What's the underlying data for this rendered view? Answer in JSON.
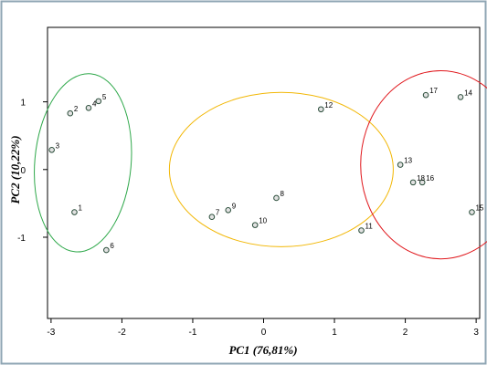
{
  "chart_data": {
    "type": "scatter",
    "xlabel": "PC1 (76,81%)",
    "ylabel": "PC2 (10,22%)",
    "xlim": [
      -3.05,
      3.05
    ],
    "ylim": [
      -2.2,
      2.1
    ],
    "xticks": [
      -3,
      -2,
      -1,
      0,
      1,
      2,
      3
    ],
    "yticks": [
      1,
      0,
      -1
    ],
    "grid": false,
    "points": [
      {
        "label": "1",
        "x": -2.67,
        "y": -0.63
      },
      {
        "label": "2",
        "x": -2.73,
        "y": 0.83
      },
      {
        "label": "3",
        "x": -2.99,
        "y": 0.29
      },
      {
        "label": "4",
        "x": -2.47,
        "y": 0.91
      },
      {
        "label": "5",
        "x": -2.33,
        "y": 1.01
      },
      {
        "label": "6",
        "x": -2.22,
        "y": -1.19
      },
      {
        "label": "7",
        "x": -0.73,
        "y": -0.7
      },
      {
        "label": "8",
        "x": 0.18,
        "y": -0.42
      },
      {
        "label": "9",
        "x": -0.5,
        "y": -0.6
      },
      {
        "label": "10",
        "x": -0.12,
        "y": -0.82
      },
      {
        "label": "11",
        "x": 1.38,
        "y": -0.9
      },
      {
        "label": "12",
        "x": 0.81,
        "y": 0.89
      },
      {
        "label": "13",
        "x": 1.93,
        "y": 0.07
      },
      {
        "label": "14",
        "x": 2.78,
        "y": 1.07
      },
      {
        "label": "15",
        "x": 2.94,
        "y": -0.63
      },
      {
        "label": "16",
        "x": 2.24,
        "y": -0.19
      },
      {
        "label": "17",
        "x": 2.29,
        "y": 1.1
      },
      {
        "label": "18",
        "x": 2.11,
        "y": -0.19
      }
    ],
    "ellipses": [
      {
        "cx": -2.55,
        "cy": 0.1,
        "rx": 0.68,
        "ry": 1.32,
        "angle": 5,
        "color": "#2ea84a"
      },
      {
        "cx": 0.25,
        "cy": 0.0,
        "rx": 1.58,
        "ry": 1.14,
        "angle": 0,
        "color": "#f2b705"
      },
      {
        "cx": 2.5,
        "cy": 0.07,
        "rx": 1.13,
        "ry": 1.39,
        "angle": 0,
        "color": "#e0161b"
      }
    ],
    "colors": {
      "frame": "#8fa6b4",
      "axis": "#000000",
      "point_edge": "#2a4d3a",
      "point_fill": "#e2e2e2"
    }
  }
}
